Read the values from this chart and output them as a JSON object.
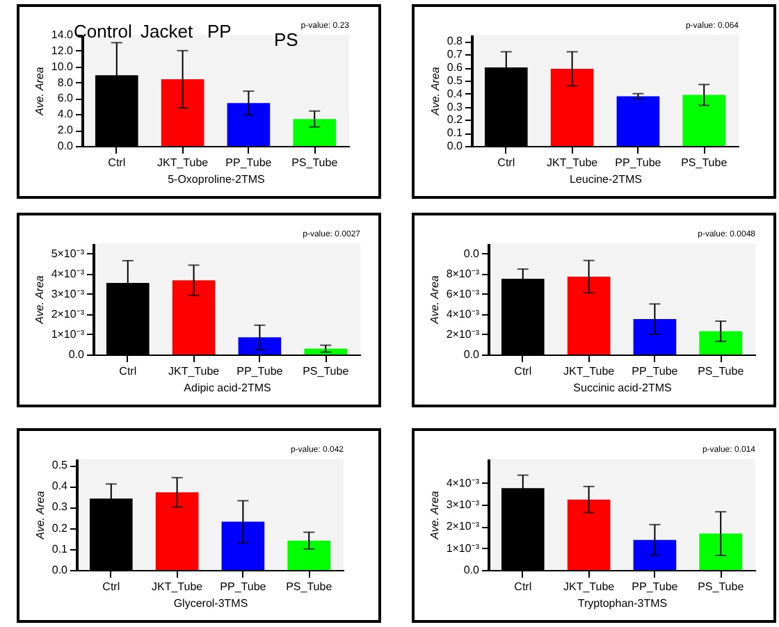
{
  "chart_data": [
    {
      "type": "bar",
      "xlabel": "5-Oxoproline-2TMS",
      "ylabel": "Ave. Area",
      "categories": [
        "Ctrl",
        "JKT_Tube",
        "PP_Tube",
        "PS_Tube"
      ],
      "values": [
        8.9,
        8.4,
        5.4,
        3.4
      ],
      "errors": [
        4.1,
        3.6,
        1.5,
        1.0
      ],
      "colors": [
        "#000000",
        "#ff0000",
        "#0000ff",
        "#00ff00"
      ],
      "ylim": [
        0,
        14
      ],
      "yticks": [
        {
          "value": 0,
          "label": "0.0"
        },
        {
          "value": 2,
          "label": "2.0"
        },
        {
          "value": 4,
          "label": "4.0"
        },
        {
          "value": 6,
          "label": "6.0"
        },
        {
          "value": 8,
          "label": "8.0"
        },
        {
          "value": 10,
          "label": "10.0"
        },
        {
          "value": 12,
          "label": "12.0"
        },
        {
          "value": 14,
          "label": "14.0"
        }
      ],
      "annotations": [
        "p-value:  0.23",
        "Control",
        "Jacket",
        "PP",
        "PS"
      ]
    },
    {
      "type": "bar",
      "xlabel": "Leucine-2TMS",
      "ylabel": "Ave. Area",
      "categories": [
        "Ctrl",
        "JKT_Tube",
        "PP_Tube",
        "PS_Tube"
      ],
      "values": [
        0.6,
        0.59,
        0.38,
        0.39
      ],
      "errors": [
        0.12,
        0.13,
        0.02,
        0.08
      ],
      "colors": [
        "#000000",
        "#ff0000",
        "#0000ff",
        "#00ff00"
      ],
      "ylim": [
        0,
        0.85
      ],
      "yticks": [
        {
          "value": 0,
          "label": "0.0"
        },
        0.1,
        0.2,
        0.3,
        0.4,
        0.5,
        0.6,
        0.7,
        0.8
      ],
      "annotations": [
        "p-value:  0.064"
      ]
    },
    {
      "type": "bar",
      "xlabel": "Adipic acid-2TMS",
      "ylabel": "Ave. Area",
      "categories": [
        "Ctrl",
        "JKT_Tube",
        "PP_Tube",
        "PS_Tube"
      ],
      "values": [
        0.00354,
        0.00367,
        0.00085,
        0.00029
      ],
      "errors": [
        0.0011,
        0.00075,
        0.0006,
        0.00017
      ],
      "colors": [
        "#000000",
        "#ff0000",
        "#0000ff",
        "#00ff00"
      ],
      "ylim": [
        0,
        0.0055
      ],
      "yticks": [
        {
          "value": 0,
          "label": "0.0"
        },
        {
          "value": 0.001,
          "label": "1×10⁻³"
        },
        {
          "value": 0.002,
          "label": "2×10⁻³"
        },
        {
          "value": 0.003,
          "label": "3×10⁻³"
        },
        {
          "value": 0.004,
          "label": "4×10⁻³"
        },
        {
          "value": 0.005,
          "label": "5×10⁻³"
        }
      ],
      "annotations": [
        "p-value:  0.0027"
      ]
    },
    {
      "type": "bar",
      "xlabel": "Succinic acid-2TMS",
      "ylabel": "Ave. Area",
      "categories": [
        "Ctrl",
        "JKT_Tube",
        "PP_Tube",
        "PS_Tube"
      ],
      "values": [
        0.0075,
        0.0077,
        0.0035,
        0.0023
      ],
      "errors": [
        0.00095,
        0.0016,
        0.0015,
        0.001
      ],
      "colors": [
        "#000000",
        "#ff0000",
        "#0000ff",
        "#00ff00"
      ],
      "ylim": [
        0,
        0.011
      ],
      "yticks": [
        {
          "value": 0,
          "label": "0.0"
        },
        {
          "value": 0.002,
          "label": "2×10⁻³"
        },
        {
          "value": 0.004,
          "label": "4×10⁻³"
        },
        {
          "value": 0.006,
          "label": "6×10⁻³"
        },
        {
          "value": 0.008,
          "label": "8×10⁻³"
        },
        {
          "value": 0.01,
          "label": "0.0"
        }
      ],
      "annotations": [
        "p-value:  0.0048"
      ]
    },
    {
      "type": "bar",
      "xlabel": "Glycerol-3TMS",
      "ylabel": "Ave. Area",
      "categories": [
        "Ctrl",
        "JKT_Tube",
        "PP_Tube",
        "PS_Tube"
      ],
      "values": [
        0.34,
        0.37,
        0.23,
        0.14
      ],
      "errors": [
        0.07,
        0.07,
        0.1,
        0.04
      ],
      "colors": [
        "#000000",
        "#ff0000",
        "#0000ff",
        "#00ff00"
      ],
      "ylim": [
        0,
        0.53
      ],
      "yticks": [
        {
          "value": 0,
          "label": "0.0"
        },
        0.1,
        0.2,
        0.3,
        0.4,
        0.5
      ],
      "annotations": [
        "p-value:  0.042"
      ]
    },
    {
      "type": "bar",
      "xlabel": "Tryptophan-3TMS",
      "ylabel": "Ave. Area",
      "categories": [
        "Ctrl",
        "JKT_Tube",
        "PP_Tube",
        "PS_Tube"
      ],
      "values": [
        0.00375,
        0.00323,
        0.00138,
        0.00167
      ],
      "errors": [
        0.0006,
        0.0006,
        0.0007,
        0.001
      ],
      "colors": [
        "#000000",
        "#ff0000",
        "#0000ff",
        "#00ff00"
      ],
      "ylim": [
        0,
        0.0051
      ],
      "yticks": [
        {
          "value": 0,
          "label": "0.0"
        },
        {
          "value": 0.001,
          "label": "1×10⁻³"
        },
        {
          "value": 0.002,
          "label": "2×10⁻³"
        },
        {
          "value": 0.003,
          "label": "3×10⁻³"
        },
        {
          "value": 0.004,
          "label": "4×10⁻³"
        }
      ],
      "annotations": [
        "p-value:  0.014"
      ]
    }
  ]
}
